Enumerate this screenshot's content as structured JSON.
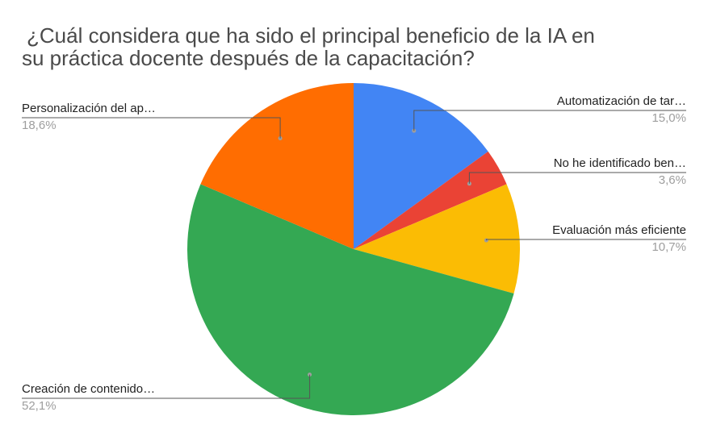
{
  "chart_data": {
    "type": "pie",
    "title_lines": [
      "¿Cuál considera que ha sido el principal beneficio de la IA en",
      "su práctica docente después de la capacitación?"
    ],
    "slices": [
      {
        "label": "Automatización de tar…",
        "value": 15.0,
        "percent_label": "15,0%",
        "color": "#4285f4"
      },
      {
        "label": "No he identificado ben…",
        "value": 3.6,
        "percent_label": "3,6%",
        "color": "#ea4335"
      },
      {
        "label": "Evaluación más eficiente",
        "value": 10.7,
        "percent_label": "10,7%",
        "color": "#fbbc04"
      },
      {
        "label": "Creación de contenido…",
        "value": 52.1,
        "percent_label": "52,1%",
        "color": "#34a853"
      },
      {
        "label": "Personalización del ap…",
        "value": 18.6,
        "percent_label": "18,6%",
        "color": "#ff6d01"
      }
    ]
  }
}
